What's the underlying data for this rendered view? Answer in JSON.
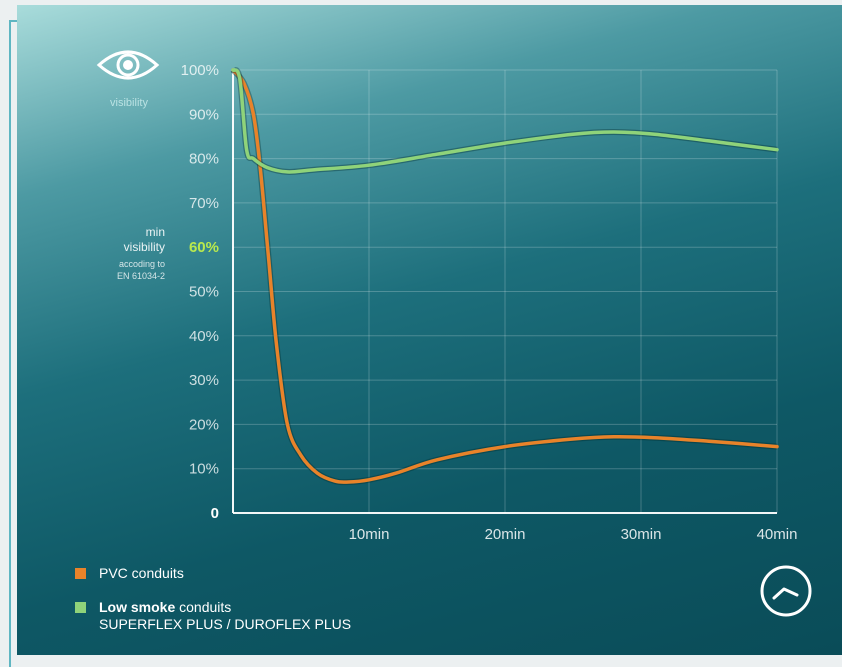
{
  "header": {
    "icon": "eye-icon",
    "label": "visibility"
  },
  "threshold_note": {
    "title_line1": "min",
    "title_line2": "visibility",
    "note_line1": "accoding to",
    "note_line2": "EN 61034-2"
  },
  "legend": {
    "pvc_label": "PVC conduits",
    "low_bold": "Low smoke",
    "low_rest": " conduits",
    "low_line2": "SUPERFLEX PLUS / DUROFLEX PLUS"
  },
  "footer_icon": "clock-icon",
  "chart_data": {
    "type": "line",
    "xlabel": "",
    "ylabel": "",
    "xlim": [
      0,
      40
    ],
    "ylim": [
      0,
      100
    ],
    "x_ticks": [
      {
        "value": 10,
        "label": "10min"
      },
      {
        "value": 20,
        "label": "20min"
      },
      {
        "value": 30,
        "label": "30min"
      },
      {
        "value": 40,
        "label": "40min"
      }
    ],
    "y_ticks": [
      {
        "value": 0,
        "label": "0"
      },
      {
        "value": 10,
        "label": "10%"
      },
      {
        "value": 20,
        "label": "20%"
      },
      {
        "value": 30,
        "label": "30%"
      },
      {
        "value": 40,
        "label": "40%"
      },
      {
        "value": 50,
        "label": "50%"
      },
      {
        "value": 60,
        "label": "60%"
      },
      {
        "value": 70,
        "label": "70%"
      },
      {
        "value": 80,
        "label": "80%"
      },
      {
        "value": 90,
        "label": "90%"
      },
      {
        "value": 100,
        "label": "100%"
      }
    ],
    "highlight_y": 60,
    "grid": true,
    "legend_position": "bottom-left",
    "series": [
      {
        "name": "PVC conduits",
        "color": "#e8832a",
        "x": [
          0,
          0.8,
          1.5,
          2.0,
          2.6,
          3.2,
          4.0,
          5.0,
          6.2,
          7.5,
          8.5,
          10,
          12,
          15,
          20,
          25,
          28,
          31,
          35,
          40
        ],
        "y": [
          100,
          97,
          90,
          78,
          58,
          38,
          20,
          13,
          9,
          7.2,
          7,
          7.5,
          9,
          12,
          15,
          16.7,
          17.2,
          17,
          16.2,
          15
        ]
      },
      {
        "name": "Low smoke conduits SUPERFLEX PLUS / DUROFLEX PLUS",
        "color": "#8fd37a",
        "x": [
          0,
          0.5,
          1.0,
          1.5,
          2.5,
          4.0,
          6.0,
          10,
          15,
          20,
          25,
          28,
          31,
          35,
          40
        ],
        "y": [
          100,
          98,
          82,
          80,
          78,
          77,
          77.5,
          78.5,
          81,
          83.5,
          85.5,
          86,
          85.5,
          84,
          82
        ]
      }
    ]
  }
}
